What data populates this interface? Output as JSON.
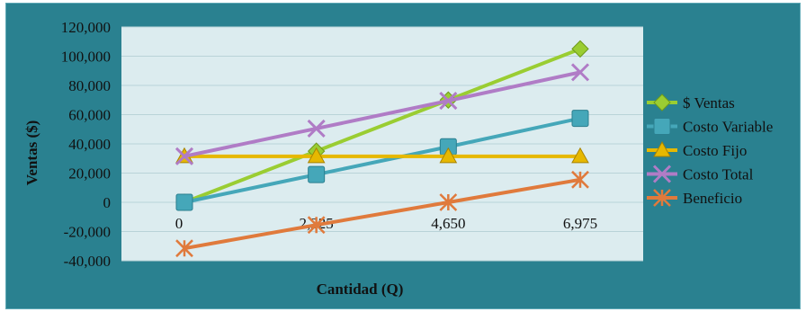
{
  "chart_data": {
    "type": "line",
    "title": "",
    "xlabel": "Cantidad (Q)",
    "ylabel": "Ventas ($)",
    "categories": [
      "0",
      "2,325",
      "4,650",
      "6,975"
    ],
    "x": [
      0,
      2325,
      4650,
      6975
    ],
    "ylim": [
      -40000,
      120000
    ],
    "yticks": [
      -40000,
      -20000,
      0,
      20000,
      40000,
      60000,
      80000,
      100000,
      120000
    ],
    "ytick_labels": [
      "-40,000",
      "-20,000",
      "0",
      "20,000",
      "40,000",
      "60,000",
      "80,000",
      "100,000",
      "120,000"
    ],
    "grid": true,
    "legend_position": "right",
    "series": [
      {
        "name": "$ Ventas",
        "values": [
          0,
          35000,
          70000,
          105000
        ],
        "color": "#9acd32",
        "marker": "diamond"
      },
      {
        "name": "Costo Variable",
        "values": [
          0,
          19000,
          38000,
          57500
        ],
        "color": "#45a7b9",
        "marker": "square"
      },
      {
        "name": "Costo Fijo",
        "values": [
          31500,
          31500,
          31500,
          31500
        ],
        "color": "#e6b800",
        "marker": "triangle"
      },
      {
        "name": "Costo Total",
        "values": [
          31500,
          50500,
          69500,
          89000
        ],
        "color": "#b07cc6",
        "marker": "x"
      },
      {
        "name": "Beneficio",
        "values": [
          -31500,
          -15500,
          0,
          15500
        ],
        "color": "#e07a3c",
        "marker": "star"
      }
    ]
  }
}
